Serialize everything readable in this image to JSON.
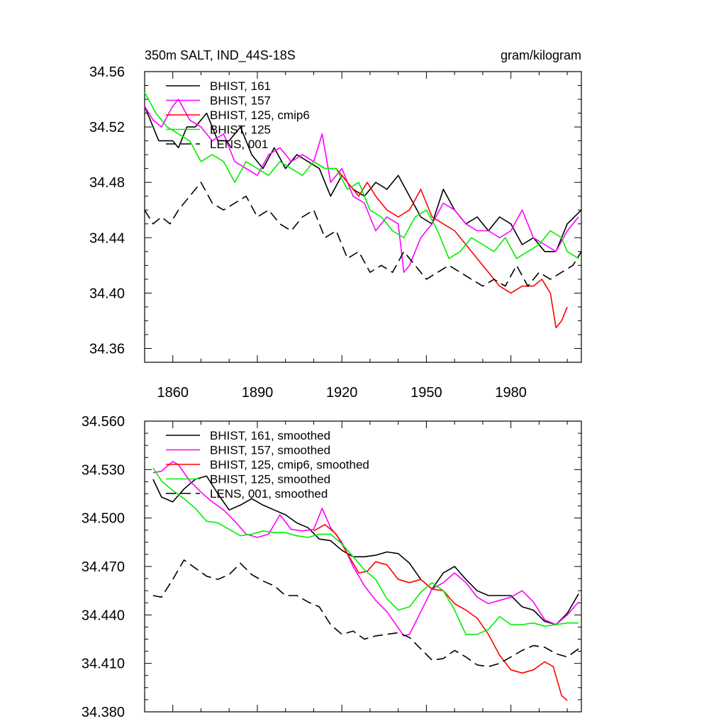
{
  "chart_data": [
    {
      "type": "line",
      "title_left": "350m SALT, IND_44S-18S",
      "title_right": "gram/kilogram",
      "xlim": [
        1850,
        2005
      ],
      "ylim": [
        34.35,
        34.56
      ],
      "xticks": [
        1860,
        1890,
        1920,
        1950,
        1980
      ],
      "yticks": [
        "34.56",
        "34.52",
        "34.48",
        "34.44",
        "34.40",
        "34.36"
      ],
      "ytick_values": [
        34.56,
        34.52,
        34.48,
        34.44,
        34.4,
        34.36
      ],
      "grid": false,
      "legend_position": "top-left",
      "series": [
        {
          "name": "BHIST, 161",
          "color": "#000000",
          "dash": "solid",
          "x": [
            1850,
            1855,
            1860,
            1862,
            1865,
            1868,
            1872,
            1876,
            1880,
            1884,
            1888,
            1892,
            1896,
            1900,
            1904,
            1908,
            1912,
            1916,
            1920,
            1924,
            1928,
            1932,
            1936,
            1940,
            1944,
            1948,
            1952,
            1956,
            1960,
            1964,
            1968,
            1972,
            1976,
            1980,
            1984,
            1988,
            1992,
            1996,
            2000,
            2005
          ],
          "y": [
            34.535,
            34.51,
            34.51,
            34.505,
            34.52,
            34.52,
            34.53,
            34.51,
            34.51,
            34.52,
            34.5,
            34.49,
            34.505,
            34.49,
            34.5,
            34.495,
            34.49,
            34.47,
            34.485,
            34.475,
            34.47,
            34.48,
            34.475,
            34.485,
            34.47,
            34.455,
            34.45,
            34.475,
            34.46,
            34.45,
            34.455,
            34.445,
            34.455,
            34.45,
            34.435,
            34.44,
            34.43,
            34.43,
            34.45,
            34.46
          ]
        },
        {
          "name": "BHIST, 157",
          "color": "#ff00ff",
          "dash": "solid",
          "x": [
            1850,
            1853,
            1856,
            1860,
            1862,
            1866,
            1870,
            1874,
            1878,
            1882,
            1886,
            1890,
            1894,
            1898,
            1902,
            1906,
            1910,
            1913,
            1916,
            1920,
            1924,
            1928,
            1932,
            1936,
            1940,
            1942,
            1944,
            1948,
            1952,
            1956,
            1960,
            1964,
            1968,
            1972,
            1976,
            1980,
            1984,
            1988,
            1992,
            1996,
            2000,
            2004
          ],
          "y": [
            34.535,
            34.525,
            34.52,
            34.535,
            34.54,
            34.525,
            34.52,
            34.51,
            34.515,
            34.495,
            34.49,
            34.485,
            34.5,
            34.505,
            34.495,
            34.5,
            34.495,
            34.515,
            34.48,
            34.49,
            34.47,
            34.465,
            34.445,
            34.455,
            34.45,
            34.415,
            34.42,
            34.44,
            34.45,
            34.465,
            34.46,
            34.45,
            34.445,
            34.445,
            34.44,
            34.445,
            34.46,
            34.44,
            34.435,
            34.43,
            34.445,
            34.455
          ]
        },
        {
          "name": "BHIST, 125, cmip6",
          "color": "#ff0000",
          "dash": "solid",
          "x": [
            1910,
            1914,
            1918,
            1922,
            1926,
            1929,
            1932,
            1936,
            1940,
            1944,
            1948,
            1952,
            1956,
            1960,
            1964,
            1968,
            1972,
            1976,
            1980,
            1984,
            1988,
            1991,
            1994,
            1996,
            1998,
            2000
          ],
          "y": [
            34.495,
            34.49,
            34.49,
            34.48,
            34.47,
            34.48,
            34.47,
            34.46,
            34.455,
            34.46,
            34.475,
            34.455,
            34.45,
            34.445,
            34.435,
            34.425,
            34.415,
            34.405,
            34.4,
            34.405,
            34.405,
            34.41,
            34.4,
            34.375,
            34.38,
            34.39
          ]
        },
        {
          "name": "BHIST, 125",
          "color": "#00ee00",
          "dash": "solid",
          "x": [
            1850,
            1854,
            1858,
            1862,
            1866,
            1870,
            1874,
            1878,
            1882,
            1886,
            1890,
            1894,
            1898,
            1902,
            1906,
            1910,
            1914,
            1918,
            1922,
            1926,
            1930,
            1934,
            1938,
            1942,
            1946,
            1950,
            1954,
            1958,
            1962,
            1966,
            1970,
            1974,
            1978,
            1982,
            1986,
            1990,
            1994,
            1998,
            2000,
            2004
          ],
          "y": [
            34.545,
            34.53,
            34.52,
            34.515,
            34.51,
            34.495,
            34.5,
            34.495,
            34.48,
            34.495,
            34.49,
            34.485,
            34.495,
            34.49,
            34.485,
            34.495,
            34.49,
            34.49,
            34.475,
            34.48,
            34.46,
            34.455,
            34.445,
            34.44,
            34.455,
            34.46,
            34.445,
            34.425,
            34.43,
            34.44,
            34.435,
            34.43,
            34.44,
            34.425,
            34.43,
            34.435,
            34.445,
            34.44,
            34.43,
            34.425
          ]
        },
        {
          "name": "LENS, 001",
          "color": "#000000",
          "dash": "dashed",
          "x": [
            1850,
            1853,
            1856,
            1859,
            1862,
            1866,
            1870,
            1874,
            1878,
            1882,
            1886,
            1890,
            1894,
            1898,
            1902,
            1906,
            1910,
            1914,
            1918,
            1922,
            1926,
            1930,
            1934,
            1938,
            1942,
            1946,
            1950,
            1954,
            1958,
            1962,
            1966,
            1970,
            1974,
            1978,
            1982,
            1986,
            1990,
            1994,
            1998,
            2002,
            2005
          ],
          "y": [
            34.46,
            34.45,
            34.455,
            34.45,
            34.46,
            34.47,
            34.48,
            34.465,
            34.46,
            34.465,
            34.47,
            34.455,
            34.46,
            34.45,
            34.445,
            34.455,
            34.46,
            34.44,
            34.445,
            34.425,
            34.43,
            34.415,
            34.42,
            34.415,
            34.43,
            34.42,
            34.41,
            34.415,
            34.42,
            34.415,
            34.41,
            34.405,
            34.41,
            34.405,
            34.42,
            34.405,
            34.415,
            34.41,
            34.415,
            34.42,
            34.43
          ]
        }
      ]
    },
    {
      "type": "line",
      "xlim": [
        1850,
        2005
      ],
      "ylim": [
        34.38,
        34.56
      ],
      "xticks": [
        1860,
        1890,
        1920,
        1950,
        1980
      ],
      "yticks": [
        "34.560",
        "34.530",
        "34.500",
        "34.470",
        "34.440",
        "34.410",
        "34.380"
      ],
      "ytick_values": [
        34.56,
        34.53,
        34.5,
        34.47,
        34.44,
        34.41,
        34.38
      ],
      "grid": false,
      "legend_position": "top-left",
      "series": [
        {
          "name": "BHIST, 161, smoothed",
          "color": "#000000",
          "dash": "solid",
          "x": [
            1853,
            1856,
            1860,
            1864,
            1868,
            1872,
            1876,
            1880,
            1884,
            1888,
            1892,
            1896,
            1900,
            1904,
            1908,
            1912,
            1916,
            1920,
            1924,
            1928,
            1932,
            1936,
            1940,
            1944,
            1948,
            1952,
            1956,
            1960,
            1964,
            1968,
            1972,
            1976,
            1980,
            1984,
            1988,
            1992,
            1996,
            2000,
            2004
          ],
          "y": [
            34.524,
            34.513,
            34.51,
            34.518,
            34.524,
            34.526,
            34.515,
            34.505,
            34.508,
            34.512,
            34.508,
            34.505,
            34.502,
            34.497,
            34.494,
            34.487,
            34.486,
            34.48,
            34.476,
            34.476,
            34.477,
            34.479,
            34.478,
            34.472,
            34.462,
            34.456,
            34.466,
            34.47,
            34.462,
            34.455,
            34.452,
            34.452,
            34.452,
            34.445,
            34.443,
            34.436,
            34.434,
            34.441,
            34.453
          ]
        },
        {
          "name": "BHIST, 157, smoothed",
          "color": "#ff00ff",
          "dash": "solid",
          "x": [
            1853,
            1856,
            1860,
            1862,
            1866,
            1870,
            1874,
            1878,
            1882,
            1886,
            1890,
            1894,
            1898,
            1902,
            1906,
            1910,
            1913,
            1916,
            1920,
            1924,
            1928,
            1932,
            1936,
            1940,
            1942,
            1944,
            1948,
            1952,
            1956,
            1960,
            1964,
            1968,
            1972,
            1976,
            1980,
            1984,
            1988,
            1992,
            1996,
            2000,
            2004
          ],
          "y": [
            34.528,
            34.529,
            34.535,
            34.533,
            34.523,
            34.516,
            34.51,
            34.505,
            34.498,
            34.49,
            34.488,
            34.49,
            34.502,
            34.493,
            34.492,
            34.493,
            34.506,
            34.494,
            34.485,
            34.47,
            34.458,
            34.449,
            34.442,
            34.432,
            34.427,
            34.428,
            34.442,
            34.456,
            34.46,
            34.466,
            34.46,
            34.451,
            34.447,
            34.449,
            34.451,
            34.455,
            34.448,
            34.437,
            34.434,
            34.44,
            34.448
          ]
        },
        {
          "name": "BHIST, 125, cmip6, smoothed",
          "color": "#ff0000",
          "dash": "solid",
          "x": [
            1910,
            1914,
            1918,
            1922,
            1926,
            1929,
            1932,
            1936,
            1940,
            1944,
            1948,
            1952,
            1956,
            1960,
            1964,
            1968,
            1972,
            1976,
            1980,
            1984,
            1988,
            1992,
            1995,
            1998,
            2000
          ],
          "y": [
            34.492,
            34.496,
            34.49,
            34.478,
            34.466,
            34.467,
            34.473,
            34.471,
            34.462,
            34.46,
            34.462,
            34.456,
            34.455,
            34.447,
            34.443,
            34.438,
            34.428,
            34.415,
            34.406,
            34.404,
            34.406,
            34.411,
            34.408,
            34.39,
            34.387
          ]
        },
        {
          "name": "BHIST, 125, smoothed",
          "color": "#00ee00",
          "dash": "solid",
          "x": [
            1853,
            1856,
            1860,
            1864,
            1868,
            1872,
            1876,
            1880,
            1884,
            1888,
            1892,
            1896,
            1900,
            1904,
            1908,
            1912,
            1916,
            1920,
            1924,
            1928,
            1932,
            1936,
            1940,
            1944,
            1948,
            1952,
            1956,
            1960,
            1964,
            1968,
            1972,
            1976,
            1980,
            1984,
            1988,
            1992,
            1996,
            2000,
            2004
          ],
          "y": [
            34.531,
            34.523,
            34.517,
            34.512,
            34.506,
            34.498,
            34.497,
            34.493,
            34.489,
            34.49,
            34.492,
            34.491,
            34.491,
            34.489,
            34.488,
            34.49,
            34.49,
            34.484,
            34.476,
            34.468,
            34.462,
            34.45,
            34.443,
            34.445,
            34.454,
            34.46,
            34.455,
            34.443,
            34.428,
            34.428,
            34.431,
            34.439,
            34.434,
            34.434,
            34.435,
            34.433,
            34.434,
            34.435,
            34.435
          ]
        },
        {
          "name": "LENS, 001, smoothed",
          "color": "#000000",
          "dash": "dashed",
          "x": [
            1853,
            1856,
            1860,
            1864,
            1868,
            1872,
            1876,
            1880,
            1884,
            1888,
            1892,
            1896,
            1900,
            1904,
            1908,
            1912,
            1916,
            1920,
            1924,
            1928,
            1932,
            1936,
            1940,
            1944,
            1948,
            1952,
            1956,
            1960,
            1964,
            1968,
            1972,
            1976,
            1980,
            1984,
            1988,
            1992,
            1996,
            2000,
            2004
          ],
          "y": [
            34.452,
            34.451,
            34.462,
            34.474,
            34.469,
            34.464,
            34.462,
            34.465,
            34.472,
            34.465,
            34.461,
            34.458,
            34.452,
            34.452,
            34.448,
            34.445,
            34.434,
            34.428,
            34.43,
            34.425,
            34.427,
            34.428,
            34.429,
            34.426,
            34.419,
            34.412,
            34.413,
            34.418,
            34.414,
            34.409,
            34.408,
            34.41,
            34.414,
            34.418,
            34.421,
            34.42,
            34.416,
            34.414,
            34.419
          ]
        }
      ]
    }
  ]
}
